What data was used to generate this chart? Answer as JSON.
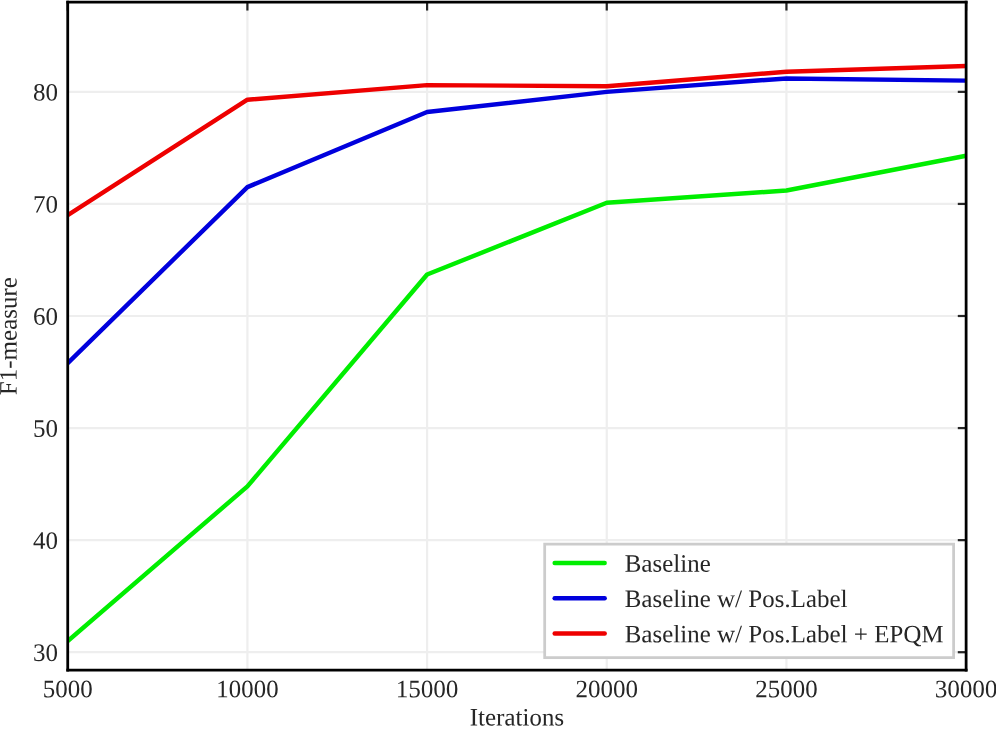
{
  "chart_data": {
    "type": "line",
    "xlabel": "Iterations",
    "ylabel": "F1-measure",
    "x": [
      5000,
      10000,
      15000,
      20000,
      25000,
      30000
    ],
    "series": [
      {
        "name": "Baseline",
        "color": "#00ee00",
        "values": [
          31,
          44.8,
          63.7,
          70.1,
          71.2,
          74.3
        ]
      },
      {
        "name": "Baseline w/ Pos.Label",
        "color": "#0000dd",
        "values": [
          55.8,
          71.5,
          78.2,
          80,
          81.2,
          81
        ]
      },
      {
        "name": "Baseline w/ Pos.Label + EPQM",
        "color": "#ee0000",
        "values": [
          69,
          79.3,
          80.6,
          80.5,
          81.8,
          82.3
        ]
      }
    ],
    "xlim": [
      5000,
      30000
    ],
    "xticks": [
      5000,
      10000,
      15000,
      20000,
      25000,
      30000
    ],
    "ylim": [
      28.4,
      88
    ],
    "yticks": [
      30,
      40,
      50,
      60,
      70,
      80
    ],
    "grid": true,
    "legend": "bottom right",
    "line_style": "solid",
    "marker": "none"
  }
}
